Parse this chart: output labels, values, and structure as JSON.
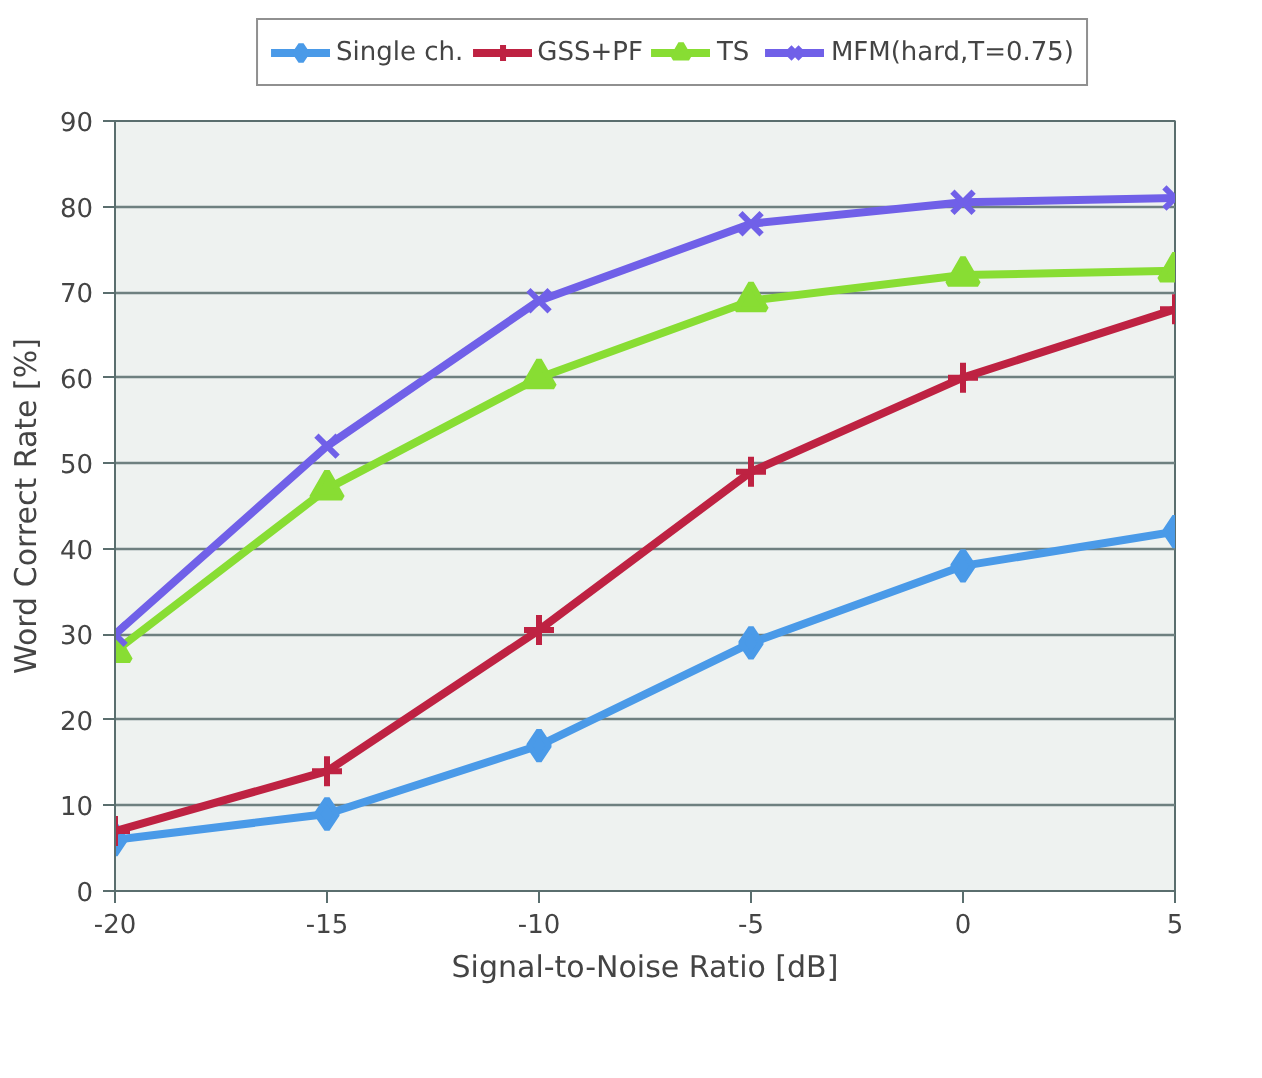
{
  "chart_data": {
    "type": "line",
    "xlabel": "Signal-to-Noise Ratio [dB]",
    "ylabel": "Word Correct Rate [%]",
    "x": [
      -20,
      -15,
      -10,
      -5,
      0,
      5
    ],
    "xlim": [
      -20,
      5
    ],
    "xticks": [
      -20,
      -15,
      -10,
      -5,
      0,
      5
    ],
    "ylim": [
      0,
      90
    ],
    "yticks": [
      0,
      10,
      20,
      30,
      40,
      50,
      60,
      70,
      80,
      90
    ],
    "grid": "y",
    "legend": "top",
    "series": [
      {
        "name": "Single ch.",
        "color": "#4a9ae8",
        "marker": "diamond",
        "values": [
          6,
          9,
          17,
          29,
          38,
          42
        ]
      },
      {
        "name": "GSS+PF",
        "color": "#be2242",
        "marker": "cross",
        "values": [
          7,
          14,
          30.5,
          49,
          60,
          68
        ]
      },
      {
        "name": "TS",
        "color": "#88dd33",
        "marker": "triangle",
        "values": [
          28,
          47,
          60,
          69,
          72,
          72.5
        ]
      },
      {
        "name": "MFM(hard,T=0.75)",
        "color": "#7060e8",
        "marker": "x",
        "values": [
          30,
          52,
          69,
          78,
          80.5,
          81
        ]
      }
    ]
  }
}
